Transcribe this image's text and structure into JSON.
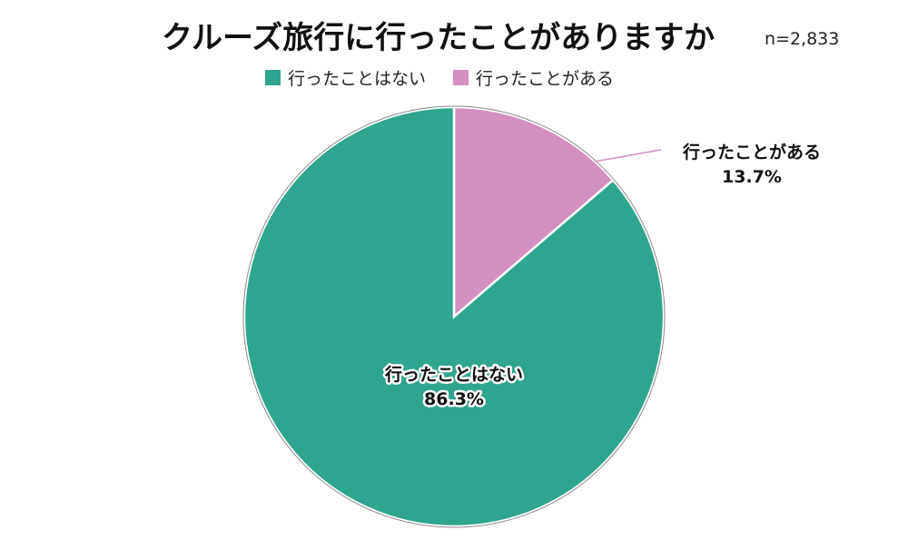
{
  "chart_data": {
    "type": "pie",
    "title": "クルーズ旅行に行ったことがありますか",
    "note": "n=2,833",
    "categories": [
      "行ったことはない",
      "行ったことがある"
    ],
    "values": [
      86.3,
      13.7
    ],
    "value_labels": [
      "86.3%",
      "13.7%"
    ],
    "colors": [
      "#2fa58f",
      "#d38fc0"
    ],
    "legend_position": "top",
    "start_angle_deg": 0,
    "direction": "clockwise"
  }
}
